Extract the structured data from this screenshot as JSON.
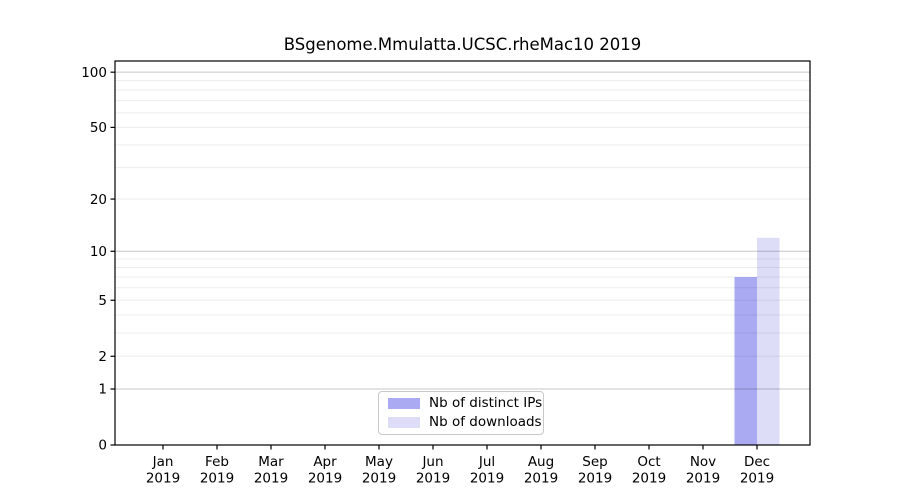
{
  "chart_data": {
    "type": "bar",
    "title": "BSgenome.Mmulatta.UCSC.rheMac10 2019",
    "categories": [
      "Jan",
      "Feb",
      "Mar",
      "Apr",
      "May",
      "Jun",
      "Jul",
      "Aug",
      "Sep",
      "Oct",
      "Nov",
      "Dec"
    ],
    "year": "2019",
    "series": [
      {
        "name": "Nb of distinct IPs",
        "color": "#aaaaf3",
        "values": [
          0,
          0,
          0,
          0,
          0,
          0,
          0,
          0,
          0,
          0,
          0,
          7
        ]
      },
      {
        "name": "Nb of downloads",
        "color": "#ddddf8",
        "values": [
          0,
          0,
          0,
          0,
          0,
          0,
          0,
          0,
          0,
          0,
          0,
          12
        ]
      }
    ],
    "xlabel": "",
    "ylabel": "",
    "y_axis": {
      "scale": "log1p",
      "ticks": [
        0,
        1,
        2,
        5,
        10,
        20,
        50,
        100
      ],
      "major_gridlines": [
        1,
        10,
        100
      ],
      "minor_gridlines": [
        2,
        3,
        4,
        5,
        6,
        7,
        8,
        9,
        20,
        30,
        40,
        50,
        60,
        70,
        80,
        90
      ],
      "max": 115,
      "grid": "on"
    },
    "legend": {
      "position": "bottom-center"
    },
    "colors": {
      "axis": "#000000",
      "major_grid": "rgba(0,0,0,0.22)",
      "minor_grid": "rgba(0,0,0,0.075)",
      "legend_border": "#c9c9c9"
    }
  }
}
